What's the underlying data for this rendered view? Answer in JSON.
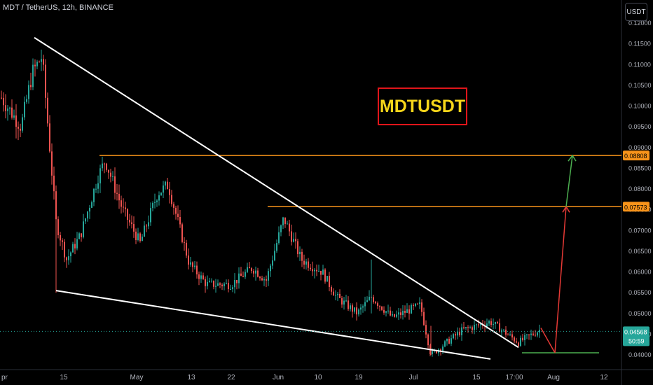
{
  "header": {
    "symbol_text": "MDT / TetherUS, 12h, BINANCE"
  },
  "currency_button": "USDT",
  "annotation": {
    "title": "MDTUSDT"
  },
  "colors": {
    "up": "#26a69a",
    "down": "#ef5350",
    "level": "#f7931a",
    "trendline": "#ffffff",
    "arrow_up": "#4caf50",
    "arrow_red": "#e53935"
  },
  "price_axis": {
    "ticks": [
      "0.12000",
      "0.11500",
      "0.11000",
      "0.10500",
      "0.10000",
      "0.09500",
      "0.09000",
      "0.08500",
      "0.08000",
      "0.07500",
      "0.07000",
      "0.06500",
      "0.06000",
      "0.05500",
      "0.05000",
      "0.04500",
      "0.04000"
    ]
  },
  "time_axis": {
    "ticks": [
      "pr",
      "15",
      "May",
      "13",
      "22",
      "Jun",
      "10",
      "19",
      "Jul",
      "15",
      "17:00",
      "Aug",
      "12"
    ]
  },
  "price_labels": [
    {
      "text": "0.08808",
      "value": 0.08808,
      "kind": "level"
    },
    {
      "text": "0.07573",
      "value": 0.07573,
      "kind": "level"
    }
  ],
  "last_price": {
    "text": "0.04568",
    "countdown": "50:59",
    "value": 0.04568
  },
  "chart_data": {
    "type": "candlestick",
    "title": "MDTUSDT",
    "symbol": "MDT / TetherUS",
    "interval": "12h",
    "exchange": "BINANCE",
    "ylim": [
      0.0385,
      0.1215
    ],
    "key_levels": [
      0.08808,
      0.07573
    ],
    "last_price": 0.04568,
    "series": [
      {
        "name": "close_trend",
        "x": [
          "Apr 08",
          "Apr 12",
          "Apr 14",
          "Apr 15",
          "Apr 20",
          "Apr 25",
          "Apr 29",
          "May 05",
          "May 10",
          "May 13",
          "May 18",
          "May 22",
          "May 26",
          "May 28",
          "Jun 01",
          "Jun 05",
          "Jun 08",
          "Jun 12",
          "Jun 17",
          "Jun 19",
          "Jun 24",
          "Jun 29",
          "Jul 02",
          "Jul 07",
          "Jul 12",
          "Jul 17",
          "Jul 21",
          "Jul 25",
          "Jul 27"
        ],
        "values": [
          0.106,
          0.113,
          0.1,
          0.06,
          0.074,
          0.085,
          0.071,
          0.074,
          0.077,
          0.068,
          0.062,
          0.056,
          0.06,
          0.064,
          0.073,
          0.068,
          0.066,
          0.057,
          0.053,
          0.047,
          0.052,
          0.052,
          0.044,
          0.046,
          0.047,
          0.048,
          0.046,
          0.044,
          0.046
        ]
      }
    ],
    "trendlines": [
      {
        "name": "upper",
        "from": [
          "Apr 12",
          0.1165
        ],
        "to": [
          "Jul 20",
          0.0418
        ]
      },
      {
        "name": "lower",
        "from": [
          "Apr 14",
          0.0555
        ],
        "to": [
          "Jul 28",
          0.039
        ]
      }
    ],
    "projection": {
      "from": 0.0405,
      "targets": [
        0.07573,
        0.08808
      ]
    }
  }
}
